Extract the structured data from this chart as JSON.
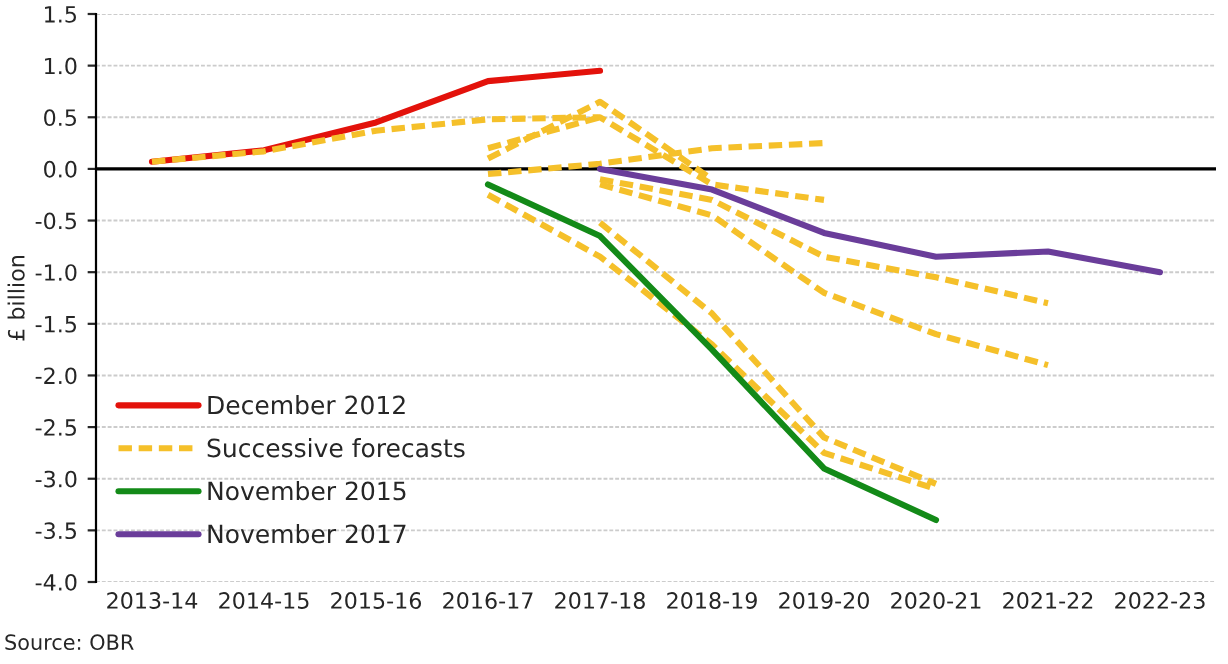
{
  "chart_data": {
    "type": "line",
    "ylabel": "£ billion",
    "categories": [
      "2013-14",
      "2014-15",
      "2015-16",
      "2016-17",
      "2017-18",
      "2018-19",
      "2019-20",
      "2020-21",
      "2021-22",
      "2022-23"
    ],
    "ylim": [
      -4.0,
      1.5
    ],
    "yticks": [
      {
        "value": -4.0,
        "label": "-4.0"
      },
      {
        "value": -3.5,
        "label": "-3.5"
      },
      {
        "value": -3.0,
        "label": "-3.0"
      },
      {
        "value": -2.5,
        "label": "-2.5"
      },
      {
        "value": -2.0,
        "label": "-2.0"
      },
      {
        "value": -1.5,
        "label": "-1.5"
      },
      {
        "value": -1.0,
        "label": "-1.0"
      },
      {
        "value": -0.5,
        "label": "-0.5"
      },
      {
        "value": 0.0,
        "label": "0.0"
      },
      {
        "value": 0.5,
        "label": "0.5"
      },
      {
        "value": 1.0,
        "label": "1.0"
      },
      {
        "value": 1.5,
        "label": "1.5"
      }
    ],
    "grid": "y",
    "legend": "bottom left",
    "ref_lines": [
      {
        "axis": "y",
        "value": 0,
        "color": "#000000"
      }
    ],
    "annotations": [
      "Source: OBR"
    ],
    "series": [
      {
        "name": "December 2012",
        "color": "#e3120b",
        "line_style": "solid",
        "values": [
          0.07,
          0.18,
          0.45,
          0.85,
          0.95,
          null,
          null,
          null,
          null,
          null
        ]
      },
      {
        "name": "Successive forecasts",
        "color": "#f5c02a",
        "line_style": "dashed",
        "values": [
          0.07,
          0.17,
          0.37,
          0.48,
          0.5,
          -0.15,
          -0.3,
          null,
          null,
          null
        ]
      },
      {
        "color": "#f5c02a",
        "line_style": "dashed",
        "values": [
          null,
          null,
          null,
          0.1,
          0.65,
          -0.1,
          null,
          null,
          null,
          null
        ]
      },
      {
        "color": "#f5c02a",
        "line_style": "dashed",
        "values": [
          null,
          null,
          null,
          0.2,
          0.5,
          null,
          null,
          null,
          null,
          null
        ]
      },
      {
        "color": "#f5c02a",
        "line_style": "dashed",
        "values": [
          null,
          null,
          null,
          -0.05,
          0.05,
          0.2,
          0.25,
          null,
          null,
          null
        ]
      },
      {
        "color": "#f5c02a",
        "line_style": "dashed",
        "values": [
          null,
          null,
          null,
          null,
          -0.1,
          -0.3,
          -0.85,
          -1.05,
          -1.3,
          null
        ]
      },
      {
        "color": "#f5c02a",
        "line_style": "dashed",
        "values": [
          null,
          null,
          null,
          null,
          -0.15,
          -0.45,
          -1.2,
          -1.6,
          -1.9,
          null
        ]
      },
      {
        "color": "#f5c02a",
        "line_style": "dashed",
        "values": [
          null,
          null,
          null,
          -0.25,
          -0.85,
          -1.7,
          -2.75,
          -3.1,
          null,
          null
        ]
      },
      {
        "color": "#f5c02a",
        "line_style": "dashed",
        "values": [
          null,
          null,
          null,
          null,
          -0.52,
          -1.4,
          -2.6,
          -3.05,
          null,
          null
        ]
      },
      {
        "name": "November 2015",
        "color": "#138a18",
        "line_style": "solid",
        "values": [
          null,
          null,
          null,
          -0.15,
          -0.65,
          -1.75,
          -2.9,
          -3.4,
          null,
          null
        ]
      },
      {
        "name": "November 2017",
        "color": "#6a3d9a",
        "line_style": "solid",
        "values": [
          null,
          null,
          null,
          null,
          0.0,
          -0.2,
          -0.62,
          -0.85,
          -0.8,
          -1.0
        ]
      }
    ]
  }
}
